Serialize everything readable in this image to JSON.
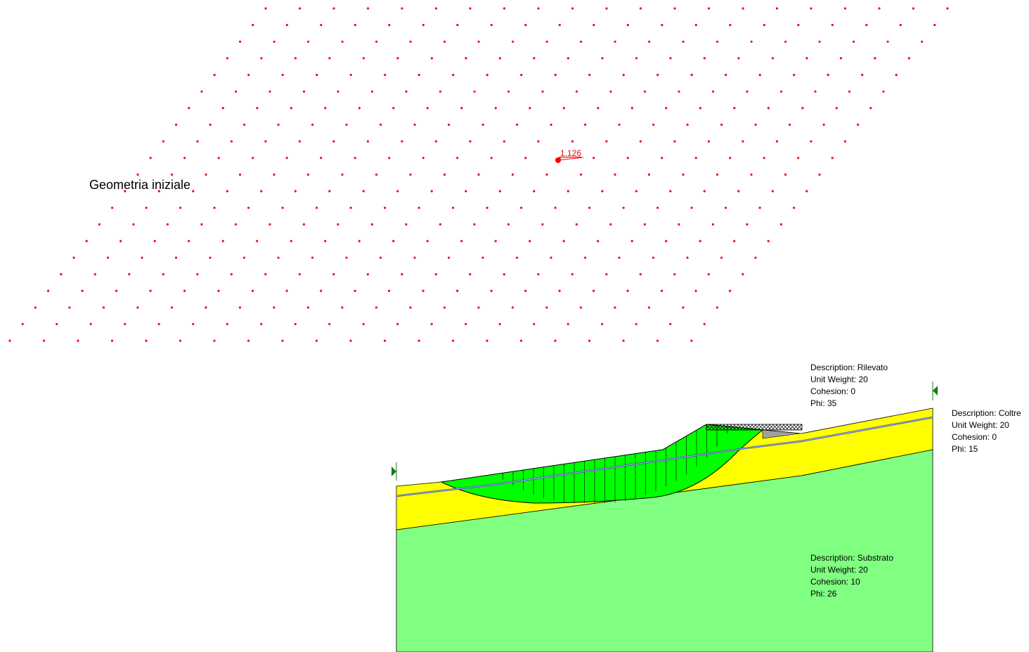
{
  "title": "Geometria iniziale",
  "critical_center": {
    "factor_of_safety": "1.126"
  },
  "colors": {
    "grid_point": "#ff0000",
    "substrato": "#80ff80",
    "coltre": "#ffff00",
    "slip_mass": "#00ff00",
    "water_table": "#3a4fa0",
    "boundary_marker": "#1a7a1a",
    "surcharge_fill": "#a0a0a0"
  },
  "materials": [
    {
      "description": "Description: Rilevato",
      "unit_weight": "Unit Weight: 20",
      "cohesion": "Cohesion: 0",
      "phi": "Phi: 35"
    },
    {
      "description": "Description: Coltre",
      "unit_weight": "Unit Weight: 20",
      "cohesion": "Cohesion: 0",
      "phi": "Phi: 15"
    },
    {
      "description": "Description: Substrato",
      "unit_weight": "Unit Weight: 20",
      "cohesion": "Cohesion: 10",
      "phi": "Phi: 26"
    }
  ]
}
